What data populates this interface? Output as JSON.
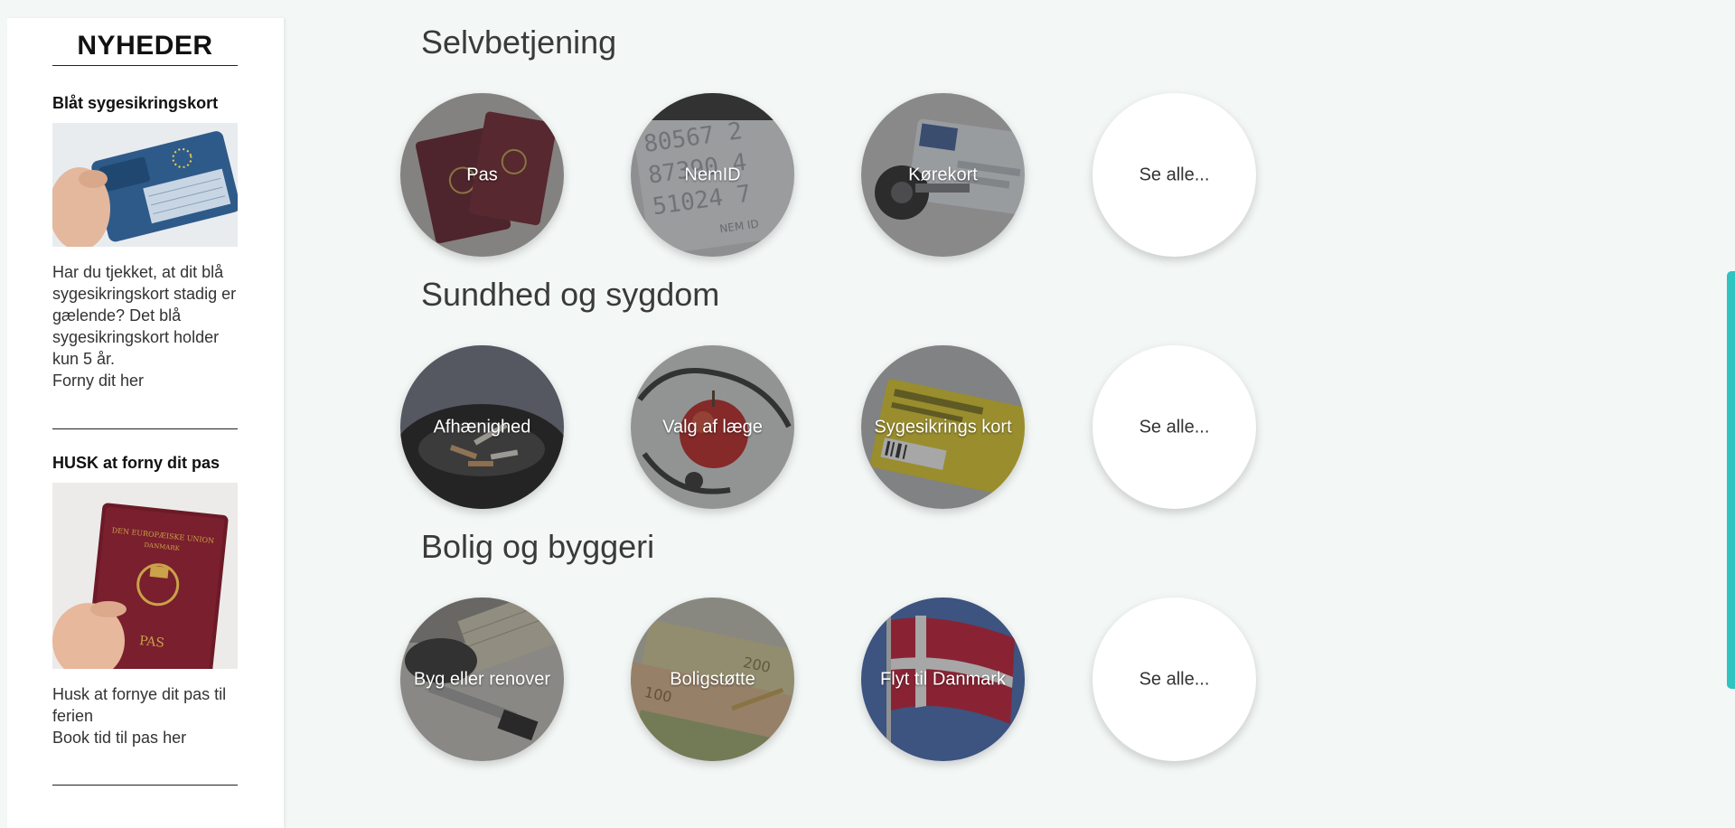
{
  "sidebar": {
    "title": "NYHEDER",
    "items": [
      {
        "heading": "Blåt sygesikringskort",
        "image_icon": "blue-health-card-photo",
        "text": "Har du tjekket, at dit blå sygesikringskort stadig er gælende? Det blå sygesikringskort holder kun 5 år.",
        "link": "Forny dit her"
      },
      {
        "heading": "HUSK at forny dit pas",
        "image_icon": "danish-passport-photo",
        "text": "Husk at fornye dit pas til ferien",
        "link": "Book tid til pas her"
      }
    ]
  },
  "sections": [
    {
      "title": "Selvbetjening",
      "tiles": [
        {
          "label": "Pas",
          "icon": "passport-photo"
        },
        {
          "label": "NemID",
          "icon": "nemid-card-photo"
        },
        {
          "label": "Kørekort",
          "icon": "drivers-license-photo"
        },
        {
          "label": "Se alle..."
        }
      ]
    },
    {
      "title": "Sundhed og sygdom",
      "tiles": [
        {
          "label": "Afhænighed",
          "icon": "ashtray-photo"
        },
        {
          "label": "Valg af læge",
          "icon": "apple-stethoscope-photo"
        },
        {
          "label": "Sygesikrings kort",
          "icon": "health-card-photo"
        },
        {
          "label": "Se alle..."
        }
      ]
    },
    {
      "title": "Bolig og byggeri",
      "tiles": [
        {
          "label": "Byg eller renover",
          "icon": "tools-photo"
        },
        {
          "label": "Boligstøtte",
          "icon": "banknotes-photo"
        },
        {
          "label": "Flyt til Danmark",
          "icon": "danish-flag-photo"
        },
        {
          "label": "Se alle..."
        }
      ]
    }
  ],
  "colors": {
    "background": "#f3f7f6",
    "scrollbar": "#2ec4bf",
    "flag_red": "#c8102e"
  }
}
